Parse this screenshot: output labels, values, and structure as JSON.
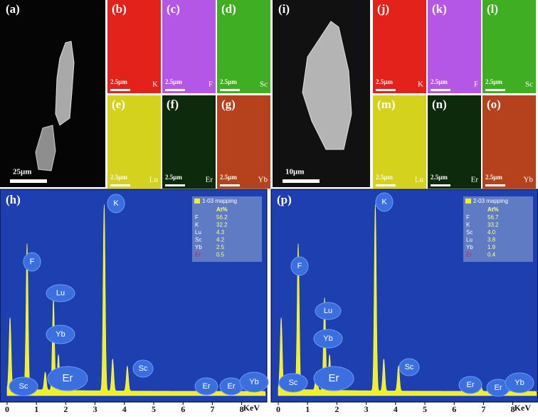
{
  "figure": {
    "halves": [
      {
        "sem": {
          "label": "(a)",
          "scale": "25μm"
        },
        "maps": [
          {
            "label": "(b)",
            "scale": "2.5μm",
            "element": "K",
            "color": "#e3201b"
          },
          {
            "label": "(c)",
            "scale": "2.5μm",
            "element": "F",
            "color": "#b456e6"
          },
          {
            "label": "(d)",
            "scale": "2.5μm",
            "element": "Sc",
            "color": "#3fae22"
          },
          {
            "label": "(e)",
            "scale": "2.5μm",
            "element": "Lu",
            "color": "#d4d21e"
          },
          {
            "label": "(f)",
            "scale": "2.5μm",
            "element": "Er",
            "color": "#0f2a0c"
          },
          {
            "label": "(g)",
            "scale": "2.5μm",
            "element": "Yb",
            "color": "#b5431f"
          }
        ],
        "spectrum": {
          "label": "(h)",
          "legend_title": "1-03 mapping",
          "column_header": "At%",
          "rows": [
            [
              "F",
              "56.2"
            ],
            [
              "K",
              "32.2"
            ],
            [
              "Lu",
              "4.3"
            ],
            [
              "Sc",
              "4.2"
            ],
            [
              "Yb",
              "2.5"
            ],
            [
              "Er",
              "0.5"
            ]
          ],
          "peak_labels": [
            "Sc",
            "F",
            "Lu",
            "Yb",
            "Er",
            "K",
            "Sc",
            "Er",
            "Er",
            "Yb"
          ]
        }
      },
      {
        "sem": {
          "label": "(i)",
          "scale": "10μm"
        },
        "maps": [
          {
            "label": "(j)",
            "scale": "2.5μm",
            "element": "K",
            "color": "#e3201b"
          },
          {
            "label": "(k)",
            "scale": "2.5μm",
            "element": "F",
            "color": "#b456e6"
          },
          {
            "label": "(l)",
            "scale": "2.5μm",
            "element": "Sc",
            "color": "#3fae22"
          },
          {
            "label": "(m)",
            "scale": "2.5μm",
            "element": "Lu",
            "color": "#d4d21e"
          },
          {
            "label": "(n)",
            "scale": "2.5μm",
            "element": "Er",
            "color": "#0f2a0c"
          },
          {
            "label": "(o)",
            "scale": "2.5μm",
            "element": "Yb",
            "color": "#b5431f"
          }
        ],
        "spectrum": {
          "label": "(p)",
          "legend_title": "2-03 mapping",
          "column_header": "At%",
          "rows": [
            [
              "F",
              "56.7"
            ],
            [
              "K",
              "33.2"
            ],
            [
              "Sc",
              "4.0"
            ],
            [
              "Lu",
              "3.8"
            ],
            [
              "Yb",
              "1.9"
            ],
            [
              "Er",
              "0.4"
            ]
          ],
          "peak_labels": [
            "Sc",
            "F",
            "Lu",
            "Yb",
            "Er",
            "K",
            "Sc",
            "Er",
            "Er",
            "Yb"
          ]
        }
      }
    ],
    "x_ticks": [
      "0",
      "1",
      "2",
      "3",
      "4",
      "5",
      "6",
      "7",
      "8"
    ],
    "x_unit": "KeV"
  }
}
